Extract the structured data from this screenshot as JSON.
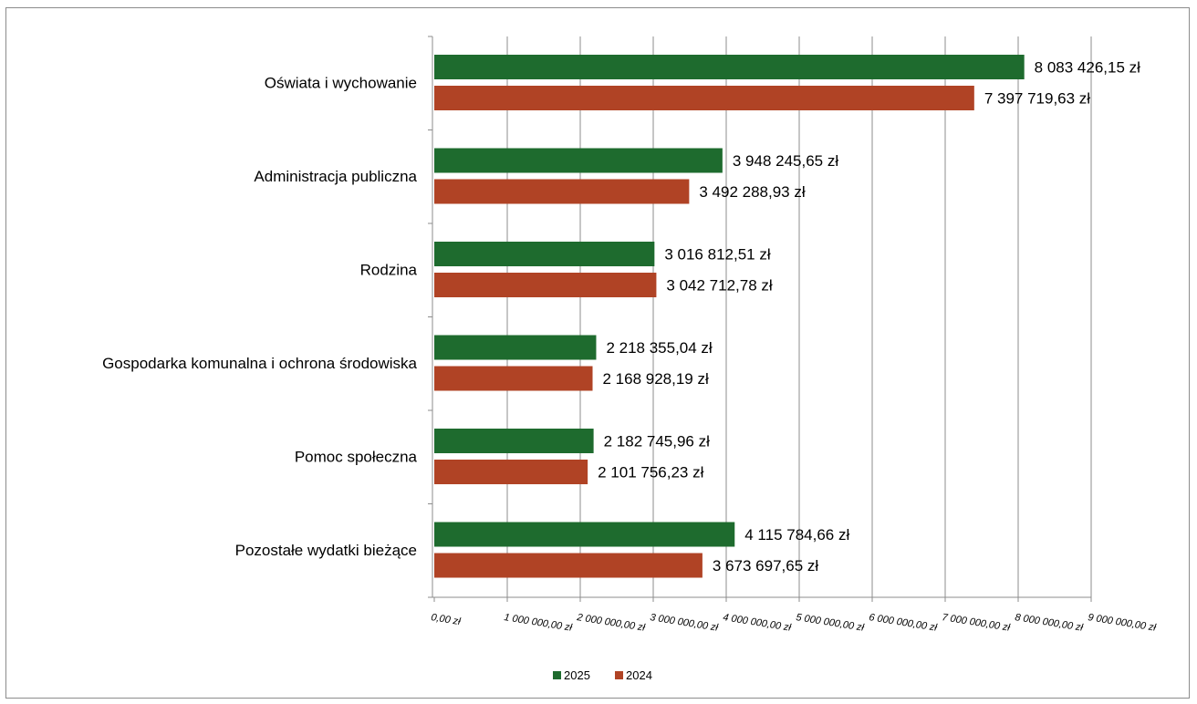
{
  "chart_data": {
    "type": "bar",
    "orientation": "horizontal",
    "categories": [
      "Oświata i wychowanie",
      "Administracja publiczna",
      "Rodzina",
      "Gospodarka komunalna i ochrona środowiska",
      "Pomoc społeczna",
      "Pozostałe wydatki bieżące"
    ],
    "series": [
      {
        "name": "2025",
        "color": "#1e6b2e",
        "values": [
          8083426.15,
          3948245.65,
          3016812.51,
          2218355.04,
          2182745.96,
          4115784.66
        ],
        "labels": [
          "8 083 426,15 zł",
          "3 948 245,65 zł",
          "3 016 812,51 zł",
          "2 218 355,04 zł",
          "2 182 745,96 zł",
          "4 115 784,66 zł"
        ]
      },
      {
        "name": "2024",
        "color": "#b04325",
        "values": [
          7397719.63,
          3492288.93,
          3042712.78,
          2168928.19,
          2101756.23,
          3673697.65
        ],
        "labels": [
          "7 397 719,63 zł",
          "3 492 288,93 zł",
          "3 042 712,78 zł",
          "2 168 928,19 zł",
          "2 101 756,23 zł",
          "3 673 697,65 zł"
        ]
      }
    ],
    "xlim": [
      0,
      9000000
    ],
    "x_ticks": [
      0,
      1000000,
      2000000,
      3000000,
      4000000,
      5000000,
      6000000,
      7000000,
      8000000,
      9000000
    ],
    "x_tick_labels": [
      "0,00 zł",
      "1 000 000,00 zł",
      "2 000 000,00 zł",
      "3 000 000,00 zł",
      "4 000 000,00 zł",
      "5 000 000,00 zł",
      "6 000 000,00 zł",
      "7 000 000,00 zł",
      "8 000 000,00 zł",
      "9 000 000,00 zł"
    ],
    "grid": true,
    "legend_position": "bottom",
    "title": "",
    "xlabel": "",
    "ylabel": ""
  }
}
